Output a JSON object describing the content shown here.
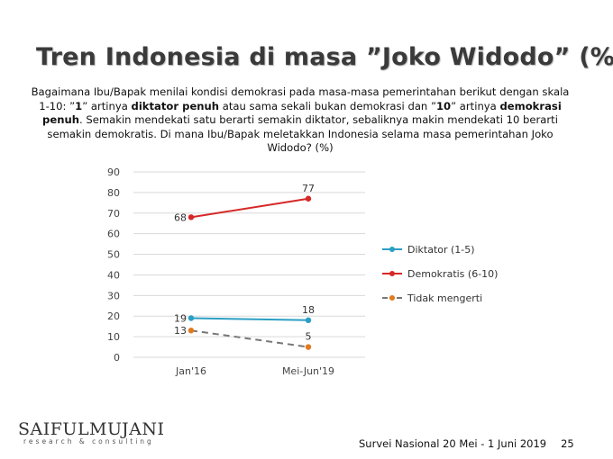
{
  "slide": {
    "title": "Tren Indonesia di masa ”Joko Widodo” (%)",
    "question_parts": [
      {
        "text": "Bagaimana Ibu/Bapak menilai kondisi demokrasi pada masa-masa pemerintahan berikut dengan skala 1-10: ”",
        "bold": false
      },
      {
        "text": "1",
        "bold": true
      },
      {
        "text": "” artinya ",
        "bold": false
      },
      {
        "text": "diktator  penuh",
        "bold": true
      },
      {
        "text": " atau sama sekali bukan demokrasi dan ”",
        "bold": false
      },
      {
        "text": "10",
        "bold": true
      },
      {
        "text": "” artinya ",
        "bold": false
      },
      {
        "text": "demokrasi penuh",
        "bold": true
      },
      {
        "text": ". Semakin mendekati satu berarti semakin diktator, sebaliknya makin mendekati 10 berarti semakin demokratis. Di mana Ibu/Bapak meletakkan Indonesia selama masa pemerintahan Joko Widodo? (%)",
        "bold": false
      }
    ]
  },
  "chart_data": {
    "type": "line",
    "categories": [
      "Jan'16",
      "Mei-Jun'19"
    ],
    "ylim": [
      0,
      90
    ],
    "yticks": [
      0,
      10,
      20,
      30,
      40,
      50,
      60,
      70,
      80,
      90
    ],
    "grid": true,
    "legend_position": "right",
    "series": [
      {
        "name": "Diktator (1-5)",
        "values": [
          19,
          18
        ],
        "color": "#2b9fc4",
        "dashed": false,
        "marker_color": "#2b9fc4"
      },
      {
        "name": "Demokratis (6-10)",
        "values": [
          68,
          77
        ],
        "color": "#d62828",
        "dashed": false,
        "marker_color": "#d62828"
      },
      {
        "name": "Tidak mengerti",
        "values": [
          13,
          5
        ],
        "color": "#777777",
        "dashed": true,
        "marker_color": "#e07b1f"
      }
    ]
  },
  "logo": {
    "main": "SAIFULMUJANI",
    "sub": "research & consulting"
  },
  "footer": {
    "survey": "Survei Nasional 20 Mei - 1 Juni 2019",
    "page": "25"
  }
}
